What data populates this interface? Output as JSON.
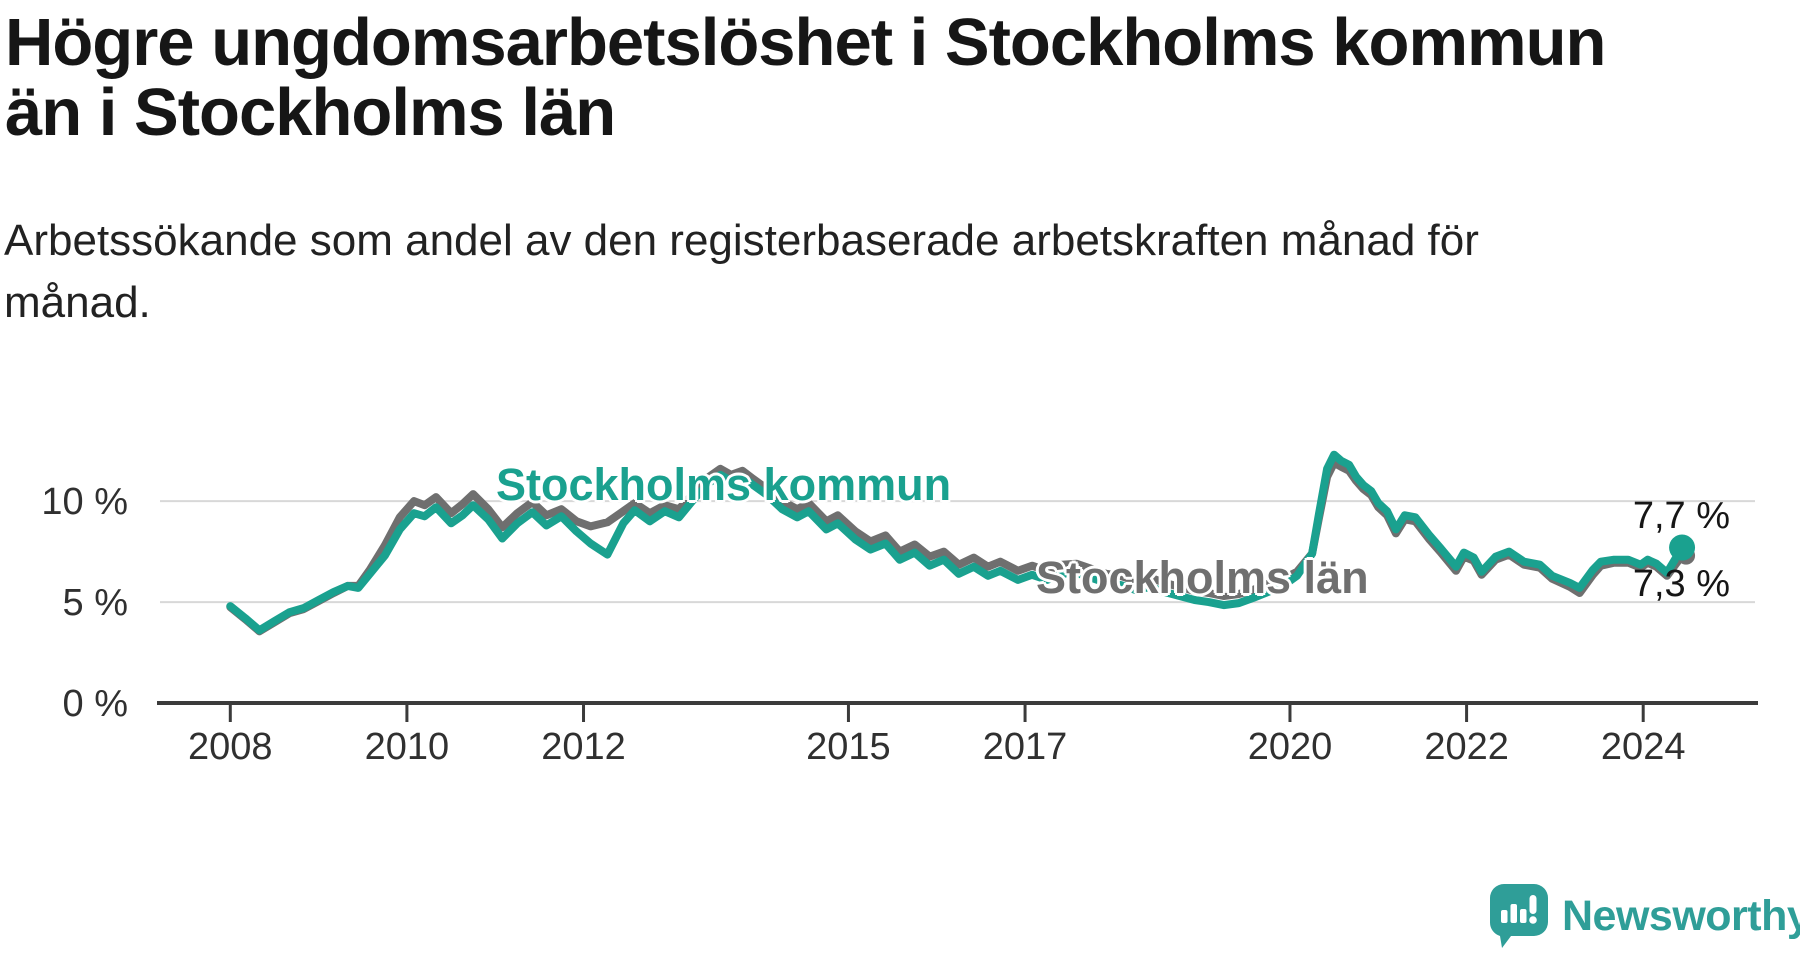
{
  "title": {
    "line1": "Högre ungdomsarbetslöshet i Stockholms kommun",
    "line2": "än i Stockholms län"
  },
  "subtitle": {
    "line1": "Arbetssökande som andel av den registerbaserade arbetskraften månad för",
    "line2": "månad."
  },
  "branding": {
    "name": "Newsworthy",
    "logo_icon": "newsworthy-speech-bubble-bar-chart-icon",
    "logo_color": "#2f9e98"
  },
  "colors": {
    "accent_teal": "#1aa18f",
    "line_gray": "#6f6f6f",
    "gridline": "#d8d8d8",
    "axis": "#3b3b3b",
    "axis_text": "#303030",
    "title_text": "#161616"
  },
  "chart_data": {
    "type": "line",
    "unit": "%",
    "grid": "horizontal",
    "xlim": [
      2007.17,
      2025.3
    ],
    "ylim": [
      0,
      16
    ],
    "x_ticks": [
      2008,
      2010,
      2012,
      2015,
      2017,
      2020,
      2022,
      2024
    ],
    "y_ticks": [
      {
        "value": 0,
        "label": "0 %"
      },
      {
        "value": 5,
        "label": "5 %"
      },
      {
        "value": 10,
        "label": "10 %"
      }
    ],
    "series": [
      {
        "name": "Stockholms kommun",
        "color": "#1aa18f",
        "end_label": "7,7 %",
        "end_value": 7.7,
        "points": [
          [
            2008.0,
            4.8
          ],
          [
            2008.17,
            4.2
          ],
          [
            2008.33,
            3.6
          ],
          [
            2008.5,
            4.05
          ],
          [
            2008.67,
            4.5
          ],
          [
            2008.83,
            4.7
          ],
          [
            2009.0,
            5.1
          ],
          [
            2009.17,
            5.5
          ],
          [
            2009.33,
            5.8
          ],
          [
            2009.45,
            5.7
          ],
          [
            2009.58,
            6.4
          ],
          [
            2009.75,
            7.3
          ],
          [
            2009.92,
            8.6
          ],
          [
            2010.08,
            9.4
          ],
          [
            2010.2,
            9.25
          ],
          [
            2010.33,
            9.7
          ],
          [
            2010.5,
            8.9
          ],
          [
            2010.63,
            9.3
          ],
          [
            2010.75,
            9.8
          ],
          [
            2010.92,
            9.1
          ],
          [
            2011.08,
            8.15
          ],
          [
            2011.25,
            8.9
          ],
          [
            2011.42,
            9.45
          ],
          [
            2011.58,
            8.8
          ],
          [
            2011.75,
            9.25
          ],
          [
            2011.92,
            8.5
          ],
          [
            2012.08,
            7.9
          ],
          [
            2012.27,
            7.35
          ],
          [
            2012.45,
            8.9
          ],
          [
            2012.58,
            9.55
          ],
          [
            2012.75,
            9.0
          ],
          [
            2012.92,
            9.5
          ],
          [
            2013.08,
            9.2
          ],
          [
            2013.25,
            10.1
          ],
          [
            2013.42,
            10.9
          ],
          [
            2013.55,
            11.3
          ],
          [
            2013.67,
            11.0
          ],
          [
            2013.8,
            11.2
          ],
          [
            2013.92,
            10.8
          ],
          [
            2014.08,
            10.3
          ],
          [
            2014.25,
            9.6
          ],
          [
            2014.42,
            9.2
          ],
          [
            2014.55,
            9.5
          ],
          [
            2014.75,
            8.6
          ],
          [
            2014.88,
            8.9
          ],
          [
            2015.08,
            8.1
          ],
          [
            2015.25,
            7.6
          ],
          [
            2015.42,
            7.9
          ],
          [
            2015.58,
            7.1
          ],
          [
            2015.75,
            7.45
          ],
          [
            2015.92,
            6.8
          ],
          [
            2016.08,
            7.1
          ],
          [
            2016.25,
            6.4
          ],
          [
            2016.42,
            6.75
          ],
          [
            2016.58,
            6.3
          ],
          [
            2016.72,
            6.55
          ],
          [
            2016.92,
            6.1
          ],
          [
            2017.08,
            6.35
          ],
          [
            2017.25,
            6.1
          ],
          [
            2017.42,
            6.4
          ],
          [
            2017.58,
            6.45
          ],
          [
            2017.75,
            6.2
          ],
          [
            2017.92,
            5.95
          ],
          [
            2018.08,
            5.85
          ],
          [
            2018.25,
            5.6
          ],
          [
            2018.42,
            5.75
          ],
          [
            2018.58,
            5.5
          ],
          [
            2018.75,
            5.3
          ],
          [
            2018.92,
            5.1
          ],
          [
            2019.08,
            5.0
          ],
          [
            2019.25,
            4.85
          ],
          [
            2019.42,
            4.95
          ],
          [
            2019.58,
            5.2
          ],
          [
            2019.75,
            5.5
          ],
          [
            2019.92,
            5.8
          ],
          [
            2020.08,
            6.3
          ],
          [
            2020.25,
            7.4
          ],
          [
            2020.33,
            9.4
          ],
          [
            2020.42,
            11.6
          ],
          [
            2020.5,
            12.3
          ],
          [
            2020.58,
            12.0
          ],
          [
            2020.67,
            11.8
          ],
          [
            2020.75,
            11.2
          ],
          [
            2020.83,
            10.8
          ],
          [
            2020.92,
            10.5
          ],
          [
            2021.0,
            9.9
          ],
          [
            2021.1,
            9.5
          ],
          [
            2021.2,
            8.6
          ],
          [
            2021.3,
            9.3
          ],
          [
            2021.42,
            9.2
          ],
          [
            2021.58,
            8.3
          ],
          [
            2021.7,
            7.7
          ],
          [
            2021.88,
            6.75
          ],
          [
            2021.97,
            7.45
          ],
          [
            2022.08,
            7.2
          ],
          [
            2022.17,
            6.5
          ],
          [
            2022.33,
            7.25
          ],
          [
            2022.48,
            7.5
          ],
          [
            2022.65,
            7.0
          ],
          [
            2022.83,
            6.85
          ],
          [
            2022.97,
            6.3
          ],
          [
            2023.17,
            5.95
          ],
          [
            2023.28,
            5.7
          ],
          [
            2023.43,
            6.6
          ],
          [
            2023.52,
            7.0
          ],
          [
            2023.67,
            7.1
          ],
          [
            2023.83,
            7.1
          ],
          [
            2023.97,
            6.85
          ],
          [
            2024.05,
            7.1
          ],
          [
            2024.15,
            6.9
          ],
          [
            2024.27,
            6.45
          ],
          [
            2024.44,
            7.7
          ]
        ]
      },
      {
        "name": "Stockholms län",
        "color": "#6f6f6f",
        "end_label": "7,3 %",
        "end_value": 7.3,
        "points": [
          [
            2008.0,
            4.75
          ],
          [
            2008.17,
            4.15
          ],
          [
            2008.33,
            3.55
          ],
          [
            2008.5,
            4.0
          ],
          [
            2008.67,
            4.45
          ],
          [
            2008.83,
            4.65
          ],
          [
            2009.0,
            5.05
          ],
          [
            2009.17,
            5.45
          ],
          [
            2009.33,
            5.8
          ],
          [
            2009.45,
            5.8
          ],
          [
            2009.58,
            6.6
          ],
          [
            2009.75,
            7.8
          ],
          [
            2009.92,
            9.2
          ],
          [
            2010.08,
            10.0
          ],
          [
            2010.2,
            9.8
          ],
          [
            2010.33,
            10.2
          ],
          [
            2010.5,
            9.4
          ],
          [
            2010.63,
            9.85
          ],
          [
            2010.75,
            10.35
          ],
          [
            2010.92,
            9.6
          ],
          [
            2011.08,
            8.7
          ],
          [
            2011.25,
            9.4
          ],
          [
            2011.42,
            9.95
          ],
          [
            2011.58,
            9.3
          ],
          [
            2011.75,
            9.6
          ],
          [
            2011.92,
            9.0
          ],
          [
            2012.08,
            8.75
          ],
          [
            2012.27,
            8.95
          ],
          [
            2012.45,
            9.5
          ],
          [
            2012.58,
            9.9
          ],
          [
            2012.75,
            9.4
          ],
          [
            2012.92,
            9.8
          ],
          [
            2013.08,
            9.6
          ],
          [
            2013.25,
            10.4
          ],
          [
            2013.42,
            11.2
          ],
          [
            2013.55,
            11.6
          ],
          [
            2013.67,
            11.3
          ],
          [
            2013.8,
            11.5
          ],
          [
            2013.92,
            11.1
          ],
          [
            2014.08,
            10.6
          ],
          [
            2014.25,
            10.0
          ],
          [
            2014.42,
            9.6
          ],
          [
            2014.55,
            9.9
          ],
          [
            2014.75,
            9.0
          ],
          [
            2014.88,
            9.3
          ],
          [
            2015.08,
            8.5
          ],
          [
            2015.25,
            8.0
          ],
          [
            2015.42,
            8.3
          ],
          [
            2015.58,
            7.5
          ],
          [
            2015.75,
            7.85
          ],
          [
            2015.92,
            7.25
          ],
          [
            2016.08,
            7.5
          ],
          [
            2016.25,
            6.85
          ],
          [
            2016.42,
            7.2
          ],
          [
            2016.58,
            6.75
          ],
          [
            2016.72,
            7.0
          ],
          [
            2016.92,
            6.55
          ],
          [
            2017.08,
            6.8
          ],
          [
            2017.25,
            6.55
          ],
          [
            2017.42,
            6.85
          ],
          [
            2017.58,
            6.9
          ],
          [
            2017.75,
            6.65
          ],
          [
            2017.92,
            6.4
          ],
          [
            2018.08,
            6.3
          ],
          [
            2018.25,
            6.05
          ],
          [
            2018.42,
            6.2
          ],
          [
            2018.58,
            5.95
          ],
          [
            2018.75,
            5.75
          ],
          [
            2018.92,
            5.55
          ],
          [
            2019.08,
            5.45
          ],
          [
            2019.25,
            5.3
          ],
          [
            2019.42,
            5.4
          ],
          [
            2019.58,
            5.6
          ],
          [
            2019.75,
            5.9
          ],
          [
            2019.92,
            6.15
          ],
          [
            2020.08,
            6.5
          ],
          [
            2020.25,
            7.4
          ],
          [
            2020.33,
            9.2
          ],
          [
            2020.42,
            11.2
          ],
          [
            2020.5,
            11.9
          ],
          [
            2020.58,
            11.7
          ],
          [
            2020.67,
            11.5
          ],
          [
            2020.75,
            11.0
          ],
          [
            2020.83,
            10.6
          ],
          [
            2020.92,
            10.3
          ],
          [
            2021.0,
            9.7
          ],
          [
            2021.1,
            9.3
          ],
          [
            2021.2,
            8.4
          ],
          [
            2021.3,
            9.1
          ],
          [
            2021.42,
            9.0
          ],
          [
            2021.58,
            8.1
          ],
          [
            2021.7,
            7.5
          ],
          [
            2021.88,
            6.55
          ],
          [
            2021.97,
            7.25
          ],
          [
            2022.08,
            7.05
          ],
          [
            2022.17,
            6.35
          ],
          [
            2022.33,
            7.1
          ],
          [
            2022.48,
            7.35
          ],
          [
            2022.65,
            6.85
          ],
          [
            2022.83,
            6.7
          ],
          [
            2022.97,
            6.15
          ],
          [
            2023.17,
            5.75
          ],
          [
            2023.28,
            5.45
          ],
          [
            2023.43,
            6.35
          ],
          [
            2023.52,
            6.8
          ],
          [
            2023.67,
            6.95
          ],
          [
            2023.83,
            6.95
          ],
          [
            2023.97,
            6.7
          ],
          [
            2024.05,
            6.95
          ],
          [
            2024.15,
            6.75
          ],
          [
            2024.27,
            6.3
          ],
          [
            2024.44,
            7.3
          ]
        ]
      }
    ]
  }
}
